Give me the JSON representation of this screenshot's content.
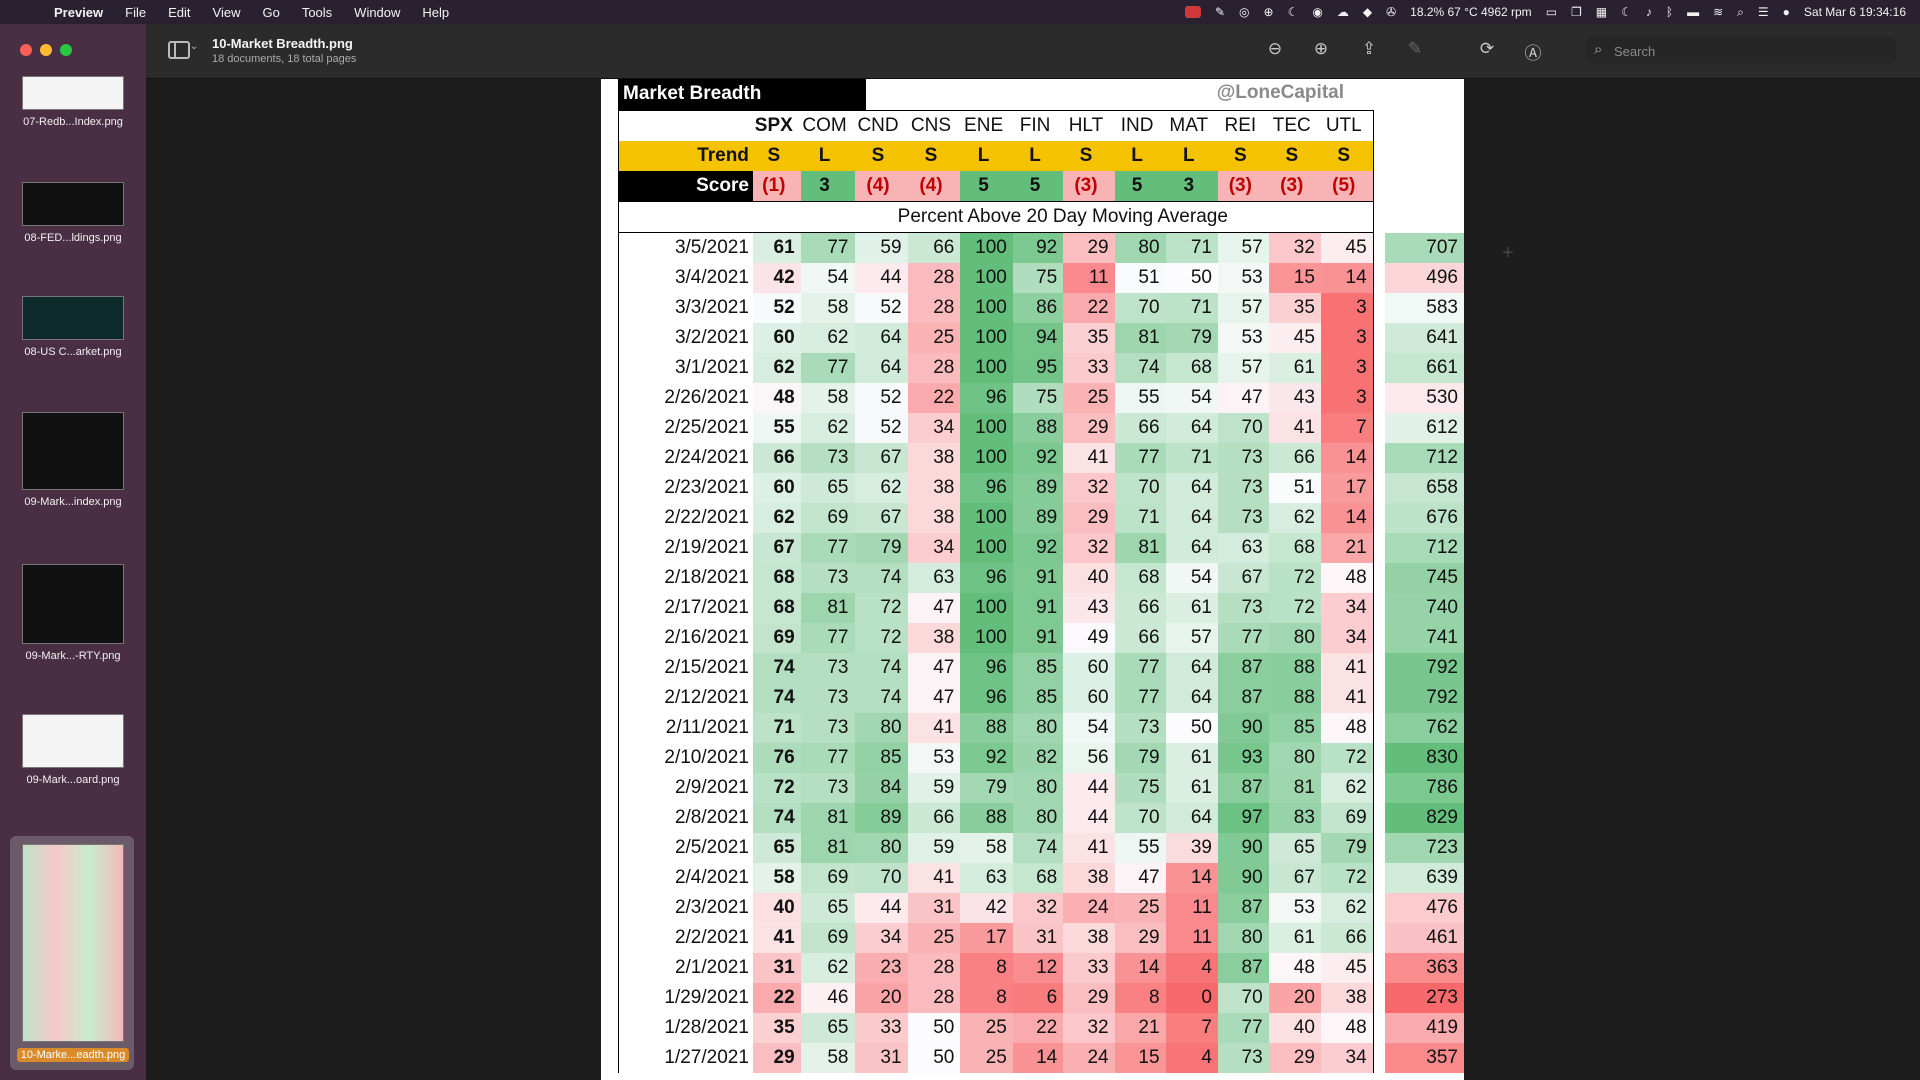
{
  "menubar": {
    "app_name": "Preview",
    "menus": [
      "File",
      "Edit",
      "View",
      "Go",
      "Tools",
      "Window",
      "Help"
    ],
    "status_text": "18.2% 67 °C 4962 rpm",
    "datetime": "Sat Mar 6  19:34:16"
  },
  "toolbar": {
    "title": "10-Market Breadth.png",
    "subtitle": "18 documents, 18 total pages",
    "search_placeholder": "Search"
  },
  "sidebar": {
    "thumbnails": [
      {
        "label": "07-Redb...Index.png"
      },
      {
        "label": "08-FED...ldings.png"
      },
      {
        "label": "08-US C...arket.png"
      },
      {
        "label": "09-Mark...index.png"
      },
      {
        "label": "09-Mark...-RTY.png"
      },
      {
        "label": "09-Mark...oard.png"
      },
      {
        "label": "10-Marke...eadth.png",
        "selected": true
      }
    ]
  },
  "document": {
    "headline": "Market Breadth",
    "handle": "@LoneCapital",
    "columns": [
      "SPX",
      "COM",
      "CND",
      "CNS",
      "ENE",
      "FIN",
      "HLT",
      "IND",
      "MAT",
      "REI",
      "TEC",
      "UTL"
    ],
    "trend_label": "Trend",
    "trend": [
      "S",
      "L",
      "S",
      "S",
      "L",
      "L",
      "S",
      "L",
      "L",
      "S",
      "S",
      "S"
    ],
    "score_label": "Score",
    "scores": [
      "(1)",
      "3",
      "(4)",
      "(4)",
      "5",
      "5",
      "(3)",
      "5",
      "3",
      "(3)",
      "(3)",
      "(5)"
    ],
    "subtitle": "Percent Above 20 Day Moving Average",
    "rows": [
      {
        "date": "3/5/2021",
        "values": [
          61,
          77,
          59,
          66,
          100,
          92,
          29,
          80,
          71,
          57,
          32,
          45
        ],
        "total": 707
      },
      {
        "date": "3/4/2021",
        "values": [
          42,
          54,
          44,
          28,
          100,
          75,
          11,
          51,
          50,
          53,
          15,
          14
        ],
        "total": 496
      },
      {
        "date": "3/3/2021",
        "values": [
          52,
          58,
          52,
          28,
          100,
          86,
          22,
          70,
          71,
          57,
          35,
          3
        ],
        "total": 583
      },
      {
        "date": "3/2/2021",
        "values": [
          60,
          62,
          64,
          25,
          100,
          94,
          35,
          81,
          79,
          53,
          45,
          3
        ],
        "total": 641
      },
      {
        "date": "3/1/2021",
        "values": [
          62,
          77,
          64,
          28,
          100,
          95,
          33,
          74,
          68,
          57,
          61,
          3
        ],
        "total": 661
      },
      {
        "date": "2/26/2021",
        "values": [
          48,
          58,
          52,
          22,
          96,
          75,
          25,
          55,
          54,
          47,
          43,
          3
        ],
        "total": 530
      },
      {
        "date": "2/25/2021",
        "values": [
          55,
          62,
          52,
          34,
          100,
          88,
          29,
          66,
          64,
          70,
          41,
          7
        ],
        "total": 612
      },
      {
        "date": "2/24/2021",
        "values": [
          66,
          73,
          67,
          38,
          100,
          92,
          41,
          77,
          71,
          73,
          66,
          14
        ],
        "total": 712
      },
      {
        "date": "2/23/2021",
        "values": [
          60,
          65,
          62,
          38,
          96,
          89,
          32,
          70,
          64,
          73,
          51,
          17
        ],
        "total": 658
      },
      {
        "date": "2/22/2021",
        "values": [
          62,
          69,
          67,
          38,
          100,
          89,
          29,
          71,
          64,
          73,
          62,
          14
        ],
        "total": 676
      },
      {
        "date": "2/19/2021",
        "values": [
          67,
          77,
          79,
          34,
          100,
          92,
          32,
          81,
          64,
          63,
          68,
          21
        ],
        "total": 712
      },
      {
        "date": "2/18/2021",
        "values": [
          68,
          73,
          74,
          63,
          96,
          91,
          40,
          68,
          54,
          67,
          72,
          48
        ],
        "total": 745
      },
      {
        "date": "2/17/2021",
        "values": [
          68,
          81,
          72,
          47,
          100,
          91,
          43,
          66,
          61,
          73,
          72,
          34
        ],
        "total": 740
      },
      {
        "date": "2/16/2021",
        "values": [
          69,
          77,
          72,
          38,
          100,
          91,
          49,
          66,
          57,
          77,
          80,
          34
        ],
        "total": 741
      },
      {
        "date": "2/15/2021",
        "values": [
          74,
          73,
          74,
          47,
          96,
          85,
          60,
          77,
          64,
          87,
          88,
          41
        ],
        "total": 792
      },
      {
        "date": "2/12/2021",
        "values": [
          74,
          73,
          74,
          47,
          96,
          85,
          60,
          77,
          64,
          87,
          88,
          41
        ],
        "total": 792
      },
      {
        "date": "2/11/2021",
        "values": [
          71,
          73,
          80,
          41,
          88,
          80,
          54,
          73,
          50,
          90,
          85,
          48
        ],
        "total": 762
      },
      {
        "date": "2/10/2021",
        "values": [
          76,
          77,
          85,
          53,
          92,
          82,
          56,
          79,
          61,
          93,
          80,
          72
        ],
        "total": 830
      },
      {
        "date": "2/9/2021",
        "values": [
          72,
          73,
          84,
          59,
          79,
          80,
          44,
          75,
          61,
          87,
          81,
          62
        ],
        "total": 786
      },
      {
        "date": "2/8/2021",
        "values": [
          74,
          81,
          89,
          66,
          88,
          80,
          44,
          70,
          64,
          97,
          83,
          69
        ],
        "total": 829
      },
      {
        "date": "2/5/2021",
        "values": [
          65,
          81,
          80,
          59,
          58,
          74,
          41,
          55,
          39,
          90,
          65,
          79
        ],
        "total": 723
      },
      {
        "date": "2/4/2021",
        "values": [
          58,
          69,
          70,
          41,
          63,
          68,
          38,
          47,
          14,
          90,
          67,
          72
        ],
        "total": 639
      },
      {
        "date": "2/3/2021",
        "values": [
          40,
          65,
          44,
          31,
          42,
          32,
          24,
          25,
          11,
          87,
          53,
          62
        ],
        "total": 476
      },
      {
        "date": "2/2/2021",
        "values": [
          41,
          69,
          34,
          25,
          17,
          31,
          38,
          29,
          11,
          80,
          61,
          66
        ],
        "total": 461
      },
      {
        "date": "2/1/2021",
        "values": [
          31,
          62,
          23,
          28,
          8,
          12,
          33,
          14,
          4,
          87,
          48,
          45
        ],
        "total": 363
      },
      {
        "date": "1/29/2021",
        "values": [
          22,
          46,
          20,
          28,
          8,
          6,
          29,
          8,
          0,
          70,
          20,
          38
        ],
        "total": 273
      },
      {
        "date": "1/28/2021",
        "values": [
          35,
          65,
          33,
          50,
          25,
          22,
          32,
          21,
          7,
          77,
          40,
          48
        ],
        "total": 419
      },
      {
        "date": "1/27/2021",
        "values": [
          29,
          58,
          31,
          50,
          25,
          14,
          24,
          15,
          4,
          73,
          29,
          34
        ],
        "total": 357
      }
    ]
  }
}
